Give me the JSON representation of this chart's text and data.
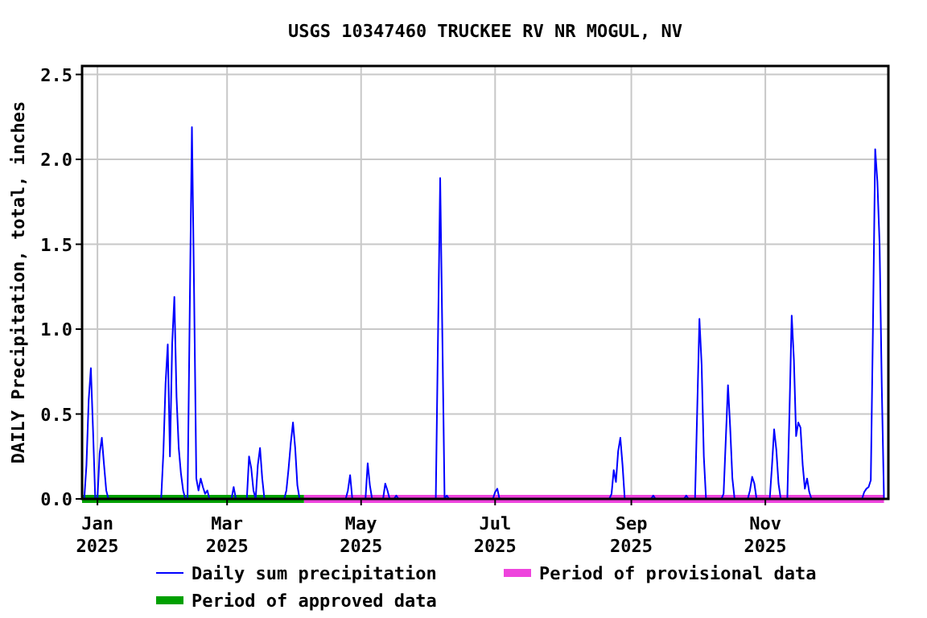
{
  "chart_data": {
    "type": "line",
    "title": "USGS 10347460 TRUCKEE RV NR MOGUL, NV",
    "ylabel": "DAILY Precipitation, total, inches",
    "xlim": [
      "2024-12-25",
      "2025-12-27"
    ],
    "xticks": [
      {
        "value": "2025-01-01",
        "label": "Jan 2025"
      },
      {
        "value": "2025-03-01",
        "label": "Mar 2025"
      },
      {
        "value": "2025-05-01",
        "label": "May 2025"
      },
      {
        "value": "2025-07-01",
        "label": "Jul 2025"
      },
      {
        "value": "2025-09-01",
        "label": "Sep 2025"
      },
      {
        "value": "2025-11-01",
        "label": "Nov 2025"
      }
    ],
    "ylim": [
      0,
      2.55
    ],
    "yticks": [
      {
        "value": 0,
        "label": "0.0"
      },
      {
        "value": 0.5,
        "label": "0.5"
      },
      {
        "value": 1,
        "label": "1.0"
      },
      {
        "value": 1.5,
        "label": "1.5"
      },
      {
        "value": 2,
        "label": "2.0"
      },
      {
        "value": 2.5,
        "label": "2.5"
      }
    ],
    "grid": true,
    "legend": "bottom",
    "marker": "none",
    "line_style": "solid",
    "series": [
      {
        "name": "Daily sum precipitation",
        "color": "#0000ff",
        "x": [
          "2024-12-26",
          "2024-12-27",
          "2024-12-28",
          "2024-12-29",
          "2024-12-30",
          "2024-12-31",
          "2025-01-01",
          "2025-01-02",
          "2025-01-03",
          "2025-01-04",
          "2025-01-05",
          "2025-01-06",
          "2025-01-30",
          "2025-01-31",
          "2025-02-01",
          "2025-02-02",
          "2025-02-03",
          "2025-02-04",
          "2025-02-05",
          "2025-02-06",
          "2025-02-07",
          "2025-02-08",
          "2025-02-09",
          "2025-02-10",
          "2025-02-11",
          "2025-02-12",
          "2025-02-13",
          "2025-02-14",
          "2025-02-15",
          "2025-02-16",
          "2025-02-17",
          "2025-02-18",
          "2025-02-19",
          "2025-02-20",
          "2025-02-21",
          "2025-03-03",
          "2025-03-04",
          "2025-03-05",
          "2025-03-10",
          "2025-03-11",
          "2025-03-12",
          "2025-03-13",
          "2025-03-14",
          "2025-03-15",
          "2025-03-16",
          "2025-03-17",
          "2025-03-18",
          "2025-03-27",
          "2025-03-28",
          "2025-03-29",
          "2025-03-30",
          "2025-03-31",
          "2025-04-01",
          "2025-04-02",
          "2025-04-03",
          "2025-04-24",
          "2025-04-25",
          "2025-04-26",
          "2025-04-27",
          "2025-05-03",
          "2025-05-04",
          "2025-05-05",
          "2025-05-06",
          "2025-05-11",
          "2025-05-12",
          "2025-05-13",
          "2025-05-14",
          "2025-05-16",
          "2025-05-17",
          "2025-05-18",
          "2025-06-04",
          "2025-06-05",
          "2025-06-06",
          "2025-06-07",
          "2025-06-08",
          "2025-06-09",
          "2025-06-10",
          "2025-06-30",
          "2025-07-01",
          "2025-07-02",
          "2025-07-03",
          "2025-08-22",
          "2025-08-23",
          "2025-08-24",
          "2025-08-25",
          "2025-08-26",
          "2025-08-27",
          "2025-08-28",
          "2025-08-29",
          "2025-09-10",
          "2025-09-11",
          "2025-09-12",
          "2025-09-25",
          "2025-09-26",
          "2025-09-27",
          "2025-09-30",
          "2025-10-01",
          "2025-10-02",
          "2025-10-03",
          "2025-10-04",
          "2025-10-05",
          "2025-10-12",
          "2025-10-13",
          "2025-10-14",
          "2025-10-15",
          "2025-10-16",
          "2025-10-17",
          "2025-10-18",
          "2025-10-24",
          "2025-10-25",
          "2025-10-26",
          "2025-10-27",
          "2025-10-28",
          "2025-11-03",
          "2025-11-04",
          "2025-11-05",
          "2025-11-06",
          "2025-11-07",
          "2025-11-08",
          "2025-11-11",
          "2025-11-12",
          "2025-11-13",
          "2025-11-14",
          "2025-11-15",
          "2025-11-16",
          "2025-11-17",
          "2025-11-18",
          "2025-11-19",
          "2025-11-20",
          "2025-11-21",
          "2025-11-22",
          "2025-12-15",
          "2025-12-16",
          "2025-12-17",
          "2025-12-18",
          "2025-12-19",
          "2025-12-20",
          "2025-12-21",
          "2025-12-22",
          "2025-12-23",
          "2025-12-24",
          "2025-12-25"
        ],
        "values": [
          0,
          0.2,
          0.58,
          0.77,
          0.4,
          0,
          0,
          0.27,
          0.36,
          0.2,
          0.05,
          0,
          0,
          0.27,
          0.68,
          0.91,
          0.25,
          0.91,
          1.19,
          0.6,
          0.3,
          0.15,
          0.05,
          0,
          0,
          1.1,
          2.19,
          1.2,
          0.12,
          0.05,
          0.12,
          0.07,
          0.03,
          0.05,
          0,
          0,
          0.07,
          0,
          0,
          0.25,
          0.18,
          0.05,
          0,
          0.2,
          0.3,
          0.12,
          0,
          0,
          0.05,
          0.18,
          0.33,
          0.45,
          0.3,
          0.08,
          0,
          0,
          0.05,
          0.14,
          0,
          0,
          0.21,
          0.08,
          0,
          0,
          0.09,
          0.05,
          0,
          0,
          0.02,
          0,
          0,
          0.95,
          1.89,
          0.95,
          0,
          0.02,
          0,
          0,
          0.04,
          0.06,
          0,
          0,
          0.03,
          0.17,
          0.1,
          0.28,
          0.36,
          0.2,
          0,
          0,
          0.02,
          0,
          0,
          0.02,
          0,
          0,
          0.53,
          1.06,
          0.79,
          0.25,
          0,
          0,
          0.03,
          0.35,
          0.67,
          0.42,
          0.12,
          0,
          0,
          0.05,
          0.13,
          0.09,
          0,
          0,
          0.19,
          0.41,
          0.29,
          0.09,
          0,
          0,
          0.52,
          1.08,
          0.82,
          0.37,
          0.45,
          0.42,
          0.2,
          0.06,
          0.12,
          0.04,
          0,
          0,
          0.04,
          0.06,
          0.07,
          0.11,
          1.03,
          2.06,
          1.87,
          1.5,
          0.66,
          0
        ]
      },
      {
        "name": "Period of approved data",
        "color": "#00a000",
        "x": [
          "2024-12-25",
          "2025-04-05"
        ],
        "values": [
          0,
          0
        ]
      },
      {
        "name": "Period of provisional data",
        "color": "#ee44dd",
        "x": [
          "2025-04-05",
          "2025-12-25"
        ],
        "values": [
          0,
          0
        ]
      }
    ]
  }
}
